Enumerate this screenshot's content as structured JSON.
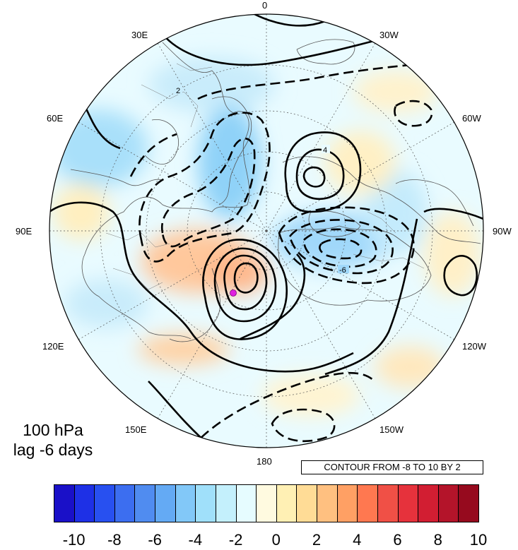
{
  "map": {
    "projection": "north polar stereographic",
    "longitude_labels": [
      {
        "text": "0",
        "lon": 0
      },
      {
        "text": "30E",
        "lon": 30
      },
      {
        "text": "60E",
        "lon": 60
      },
      {
        "text": "90E",
        "lon": 90
      },
      {
        "text": "120E",
        "lon": 120
      },
      {
        "text": "150E",
        "lon": 150
      },
      {
        "text": "180",
        "lon": 180
      },
      {
        "text": "150W",
        "lon": -150
      },
      {
        "text": "120W",
        "lon": -120
      },
      {
        "text": "90W",
        "lon": -90
      },
      {
        "text": "60W",
        "lon": -60
      },
      {
        "text": "30W",
        "lon": -30
      }
    ],
    "contour_labels": [
      "2",
      "4",
      "-6"
    ],
    "marker_color": "#e020e0"
  },
  "title": {
    "line1": "100 hPa",
    "line2": "lag -6 days"
  },
  "contour_info": "CONTOUR FROM -8 TO 10 BY 2",
  "colorbar": {
    "tick_labels": [
      "-10",
      "-8",
      "-6",
      "-4",
      "-2",
      "0",
      "2",
      "4",
      "6",
      "8",
      "10"
    ],
    "colors": [
      "#1a10c8",
      "#1e30e6",
      "#2850f0",
      "#3c6ef0",
      "#508cf0",
      "#64aaf4",
      "#82c8f8",
      "#a0e0fa",
      "#c4f0fc",
      "#e6fcff",
      "#fffae0",
      "#fff0b4",
      "#ffdc96",
      "#ffc080",
      "#ffa064",
      "#ff7850",
      "#f05046",
      "#e6323c",
      "#d21e32",
      "#b4142a",
      "#960a1e"
    ]
  }
}
